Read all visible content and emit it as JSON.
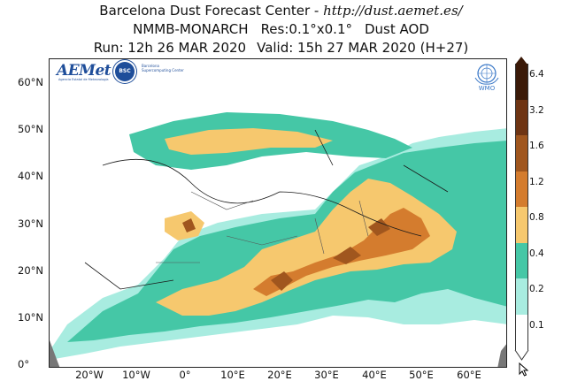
{
  "header": {
    "title_prefix": "Barcelona Dust Forecast Center - ",
    "title_url": "http://dust.aemet.es/",
    "model": "NMMB-MONARCH",
    "resolution": "Res:0.1°x0.1°",
    "variable": "Dust AOD",
    "run": "Run: 12h 26 MAR 2020",
    "valid": "Valid: 15h 27 MAR 2020 (H+27)"
  },
  "axes": {
    "latitude_labels": [
      "60°N",
      "50°N",
      "40°N",
      "30°N",
      "20°N",
      "10°N",
      "0°"
    ],
    "longitude_labels": [
      "20°W",
      "10°W",
      "0°",
      "10°E",
      "20°E",
      "30°E",
      "40°E",
      "50°E",
      "60°E"
    ]
  },
  "colorbar": {
    "ticks": [
      "6.4",
      "3.2",
      "1.6",
      "1.2",
      "0.8",
      "0.4",
      "0.2",
      "0.1"
    ],
    "colors": [
      "#3b1a08",
      "#6e3413",
      "#a0561e",
      "#d47c2e",
      "#f6c86e",
      "#45c7a6",
      "#a8ece0",
      "#ffffff"
    ]
  },
  "logos": {
    "aemet": "AEMet",
    "aemet_sub": "Agencia Estatal de Meteorología",
    "bsc_mark": "BSC",
    "bsc_text": "Barcelona Supercomputing Center",
    "wmo": "WMO"
  }
}
